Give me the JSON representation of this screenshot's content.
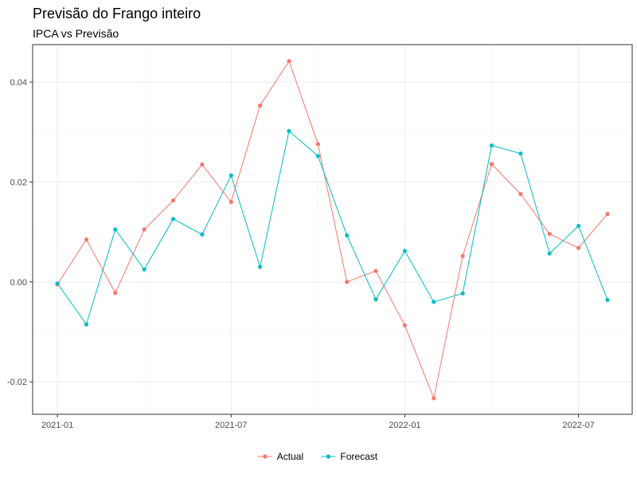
{
  "chart_data": {
    "type": "line",
    "title": "Previsão do Frango inteiro",
    "subtitle": "IPCA vs Previsão",
    "xlabel": "",
    "ylabel": "",
    "x": [
      "2021-01",
      "2021-02",
      "2021-03",
      "2021-04",
      "2021-05",
      "2021-06",
      "2021-07",
      "2021-08",
      "2021-09",
      "2021-10",
      "2021-11",
      "2021-12",
      "2022-01",
      "2022-02",
      "2022-03",
      "2022-04",
      "2022-05",
      "2022-06",
      "2022-07",
      "2022-08"
    ],
    "x_ticks": [
      "2021-01",
      "2021-07",
      "2022-01",
      "2022-07"
    ],
    "y_ticks": [
      -0.02,
      0.0,
      0.02,
      0.04
    ],
    "y_tick_labels": [
      "-0.02",
      "0.00",
      "0.02",
      "0.04"
    ],
    "ylim": [
      -0.0265,
      0.0475
    ],
    "grid": true,
    "legend_position": "bottom",
    "series": [
      {
        "name": "Actual",
        "color": "#F8766D",
        "values": [
          -0.0005,
          0.0085,
          -0.0022,
          0.0105,
          0.0163,
          0.0235,
          0.016,
          0.0353,
          0.0442,
          0.0276,
          0.0,
          0.0022,
          -0.0087,
          -0.0233,
          0.0052,
          0.0236,
          0.0176,
          0.0096,
          0.0068,
          0.0136
        ]
      },
      {
        "name": "Forecast",
        "color": "#00BFC4",
        "values": [
          -0.0003,
          -0.0085,
          0.0105,
          0.0025,
          0.0126,
          0.0095,
          0.0213,
          0.003,
          0.0302,
          0.0252,
          0.0093,
          -0.0035,
          0.0062,
          -0.004,
          -0.0023,
          0.0273,
          0.0257,
          0.0057,
          0.0112,
          -0.0036
        ]
      }
    ]
  }
}
